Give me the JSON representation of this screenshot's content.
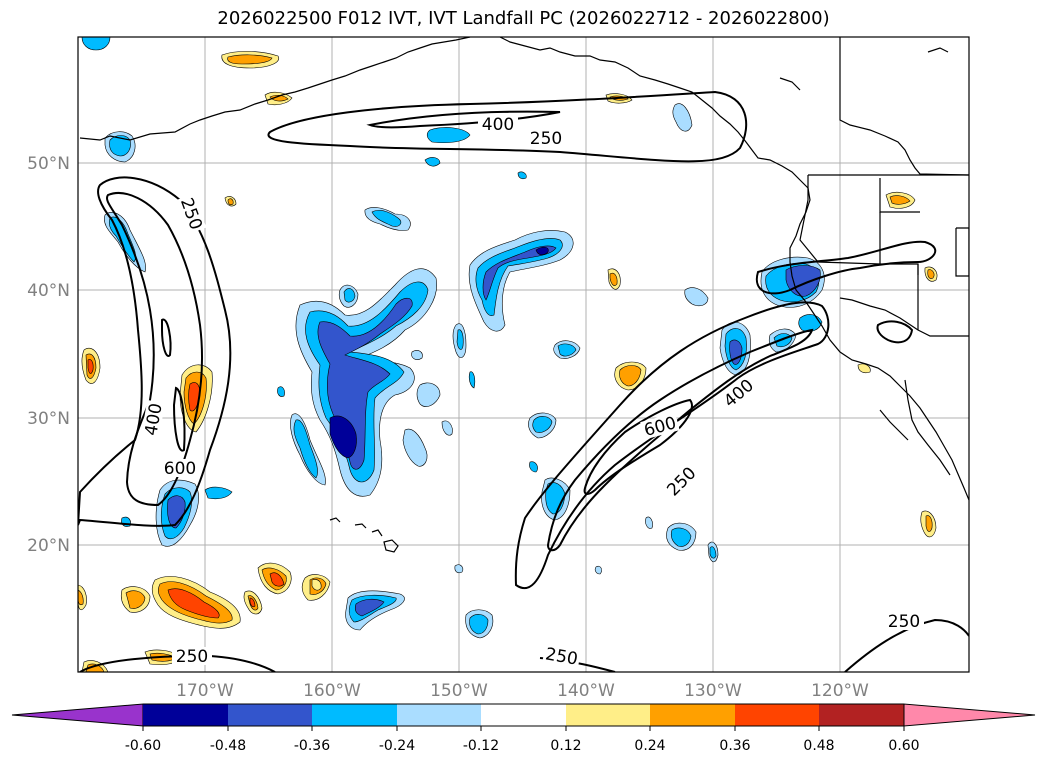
{
  "title": "2026022500 F012 IVT, IVT Landfall PC (2026022712 - 2026022800)",
  "lat_labels": [
    "50°N",
    "40°N",
    "30°N",
    "20°N"
  ],
  "lon_labels": [
    "170°W",
    "160°W",
    "150°W",
    "140°W",
    "130°W",
    "120°W"
  ],
  "contour_labels": [
    "250",
    "400",
    "600",
    "250",
    "400",
    "600",
    "400",
    "250",
    "250",
    "250",
    "250"
  ],
  "colorbar": {
    "ticks": [
      "-0.60",
      "-0.48",
      "-0.36",
      "-0.24",
      "-0.12",
      "0.12",
      "0.24",
      "0.36",
      "0.48",
      "0.60"
    ],
    "colors": [
      "#9933cc",
      "#000099",
      "#3355cc",
      "#00bbff",
      "#aaddff",
      "#ffffff",
      "#ffee88",
      "#ffa000",
      "#ff4400",
      "#b22222",
      "#ff88aa"
    ]
  },
  "fill_colors": {
    "n060": "#000099",
    "n048": "#3355cc",
    "n036": "#00bbff",
    "n024": "#aaddff",
    "p024": "#ffee88",
    "p036": "#ffa000",
    "p048": "#ff4400"
  }
}
